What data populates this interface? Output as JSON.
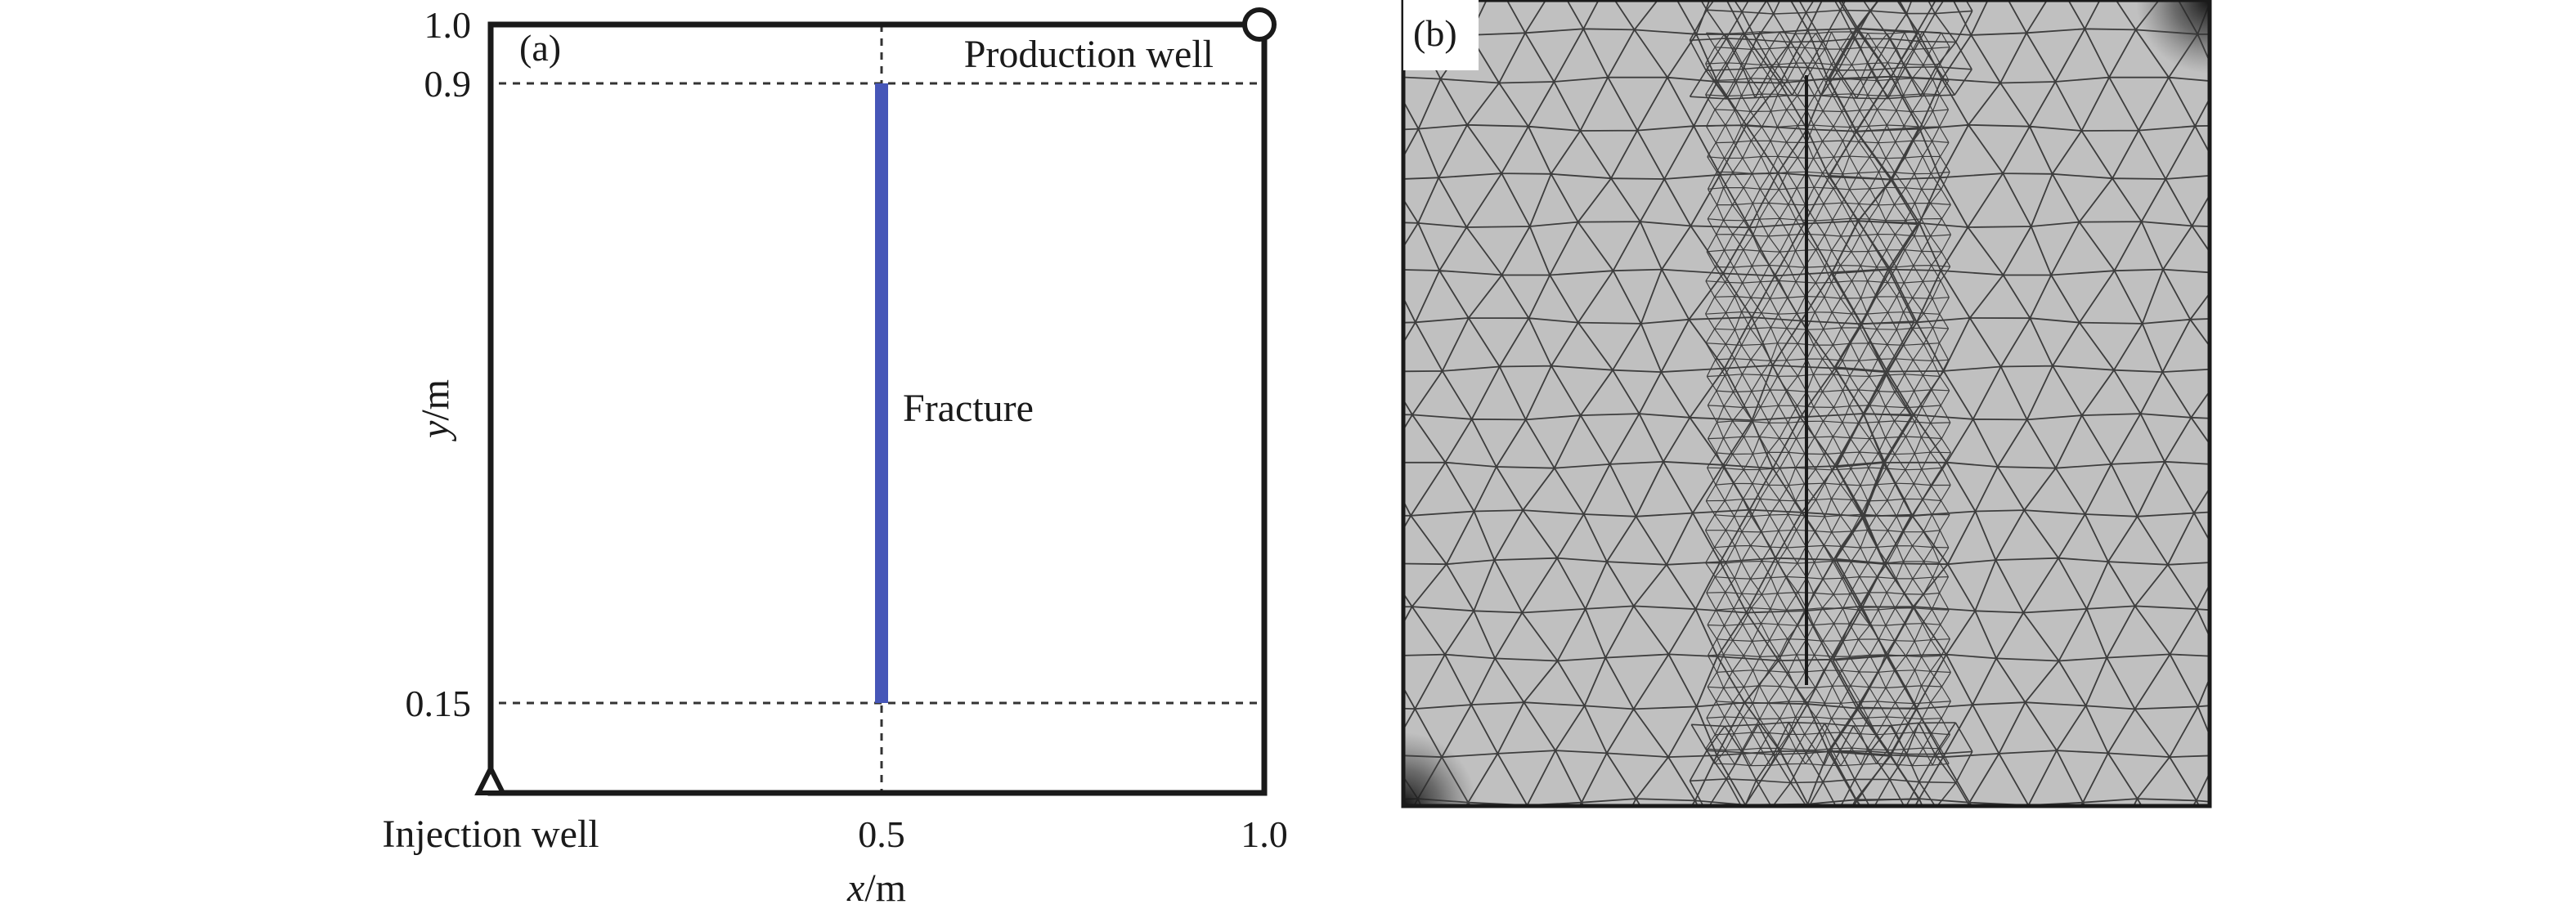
{
  "panel_a": {
    "tag": "(a)",
    "labels": {
      "production_well": "Production well",
      "injection_well": "Injection well",
      "fracture": "Fracture",
      "y_axis": {
        "var": "y",
        "unit": "/m"
      },
      "x_axis": {
        "var": "x",
        "unit": "/m"
      }
    },
    "y_ticks": [
      "1.0",
      "0.9",
      "0.15"
    ],
    "x_ticks": [
      "0.5",
      "1.0"
    ],
    "domain": {
      "x_range": [
        0,
        1
      ],
      "y_range": [
        0,
        1
      ]
    },
    "fracture_geometry": {
      "x": 0.5,
      "y_start": 0.15,
      "y_end": 0.9
    },
    "wells": {
      "injection": {
        "x": 0,
        "y": 0,
        "marker": "triangle"
      },
      "production": {
        "x": 1,
        "y": 1,
        "marker": "circle"
      }
    },
    "reference_lines": {
      "horizontal_y": [
        0.9,
        0.15
      ],
      "vertical_x": [
        0.5
      ]
    },
    "colors": {
      "fracture": "#4656b8",
      "frame": "#1a1a1a"
    }
  },
  "panel_b": {
    "tag": "(b)",
    "mesh": {
      "type": "triangular",
      "refined_zones": [
        "fracture",
        "injection-corner",
        "production-corner"
      ],
      "fill_color": "#c0c0c0",
      "edge_color": "#3d3d3d"
    }
  }
}
